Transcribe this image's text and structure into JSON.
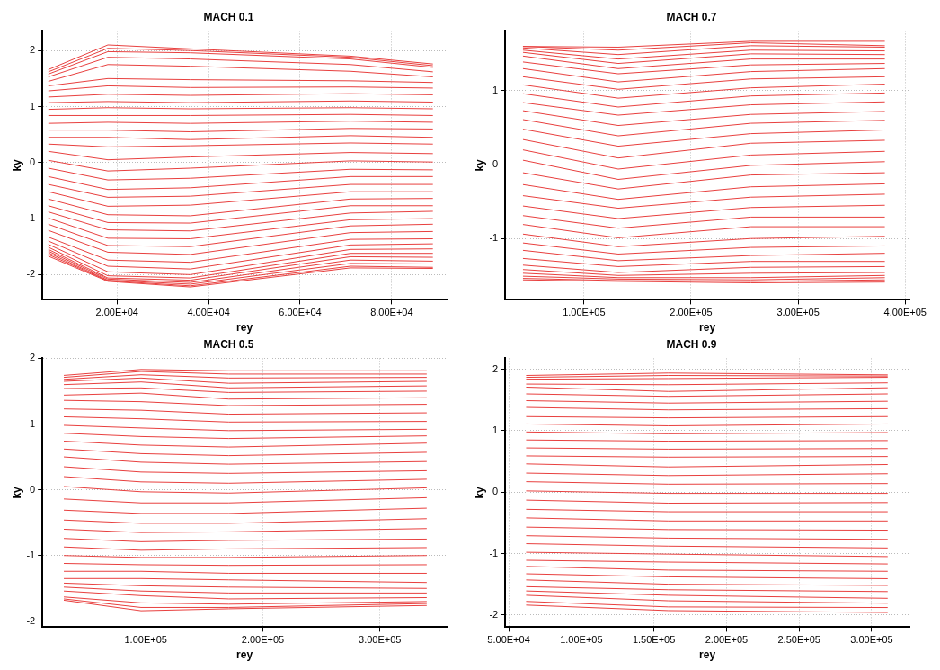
{
  "chart_data": [
    {
      "type": "line",
      "title": "MACH 0.1",
      "xlabel": "rey",
      "ylabel": "ky",
      "color": "#e8403f",
      "grid": true,
      "x": [
        5000,
        18000,
        36000,
        71000,
        89000
      ],
      "xlim": [
        3700,
        92000
      ],
      "ylim": [
        -2.45,
        2.35
      ],
      "xticks": [
        {
          "value": 20000,
          "label": "2.00E+04"
        },
        {
          "value": 40000,
          "label": "4.00E+04"
        },
        {
          "value": 60000,
          "label": "6.00E+04"
        },
        {
          "value": 80000,
          "label": "8.00E+04"
        }
      ],
      "yticks": [
        -2,
        -1,
        0,
        1,
        2
      ],
      "series": [
        {
          "values": [
            1.66,
            2.1,
            2.03,
            1.9,
            1.76
          ]
        },
        {
          "values": [
            1.62,
            2.04,
            2.0,
            1.88,
            1.73
          ]
        },
        {
          "values": [
            1.58,
            1.98,
            1.96,
            1.85,
            1.7
          ]
        },
        {
          "values": [
            1.53,
            1.88,
            1.85,
            1.75,
            1.62
          ]
        },
        {
          "values": [
            1.45,
            1.75,
            1.72,
            1.63,
            1.53
          ]
        },
        {
          "values": [
            1.37,
            1.5,
            1.48,
            1.46,
            1.43
          ]
        },
        {
          "values": [
            1.28,
            1.37,
            1.34,
            1.35,
            1.33
          ]
        },
        {
          "values": [
            1.17,
            1.22,
            1.2,
            1.23,
            1.21
          ]
        },
        {
          "values": [
            1.07,
            1.09,
            1.07,
            1.1,
            1.08
          ]
        },
        {
          "values": [
            0.95,
            0.98,
            0.96,
            0.98,
            0.96
          ]
        },
        {
          "values": [
            0.84,
            0.84,
            0.84,
            0.86,
            0.84
          ]
        },
        {
          "values": [
            0.7,
            0.72,
            0.7,
            0.74,
            0.72
          ]
        },
        {
          "values": [
            0.58,
            0.58,
            0.55,
            0.61,
            0.6
          ]
        },
        {
          "values": [
            0.45,
            0.45,
            0.41,
            0.48,
            0.45
          ]
        },
        {
          "values": [
            0.33,
            0.28,
            0.3,
            0.35,
            0.33
          ]
        },
        {
          "values": [
            0.2,
            0.05,
            0.1,
            0.18,
            0.16
          ]
        },
        {
          "values": [
            0.04,
            -0.15,
            -0.1,
            0.03,
            0.01
          ]
        },
        {
          "values": [
            -0.1,
            -0.31,
            -0.28,
            -0.12,
            -0.13
          ]
        },
        {
          "values": [
            -0.25,
            -0.48,
            -0.45,
            -0.25,
            -0.25
          ]
        },
        {
          "values": [
            -0.39,
            -0.62,
            -0.6,
            -0.39,
            -0.39
          ]
        },
        {
          "values": [
            -0.52,
            -0.78,
            -0.76,
            -0.52,
            -0.52
          ]
        },
        {
          "values": [
            -0.65,
            -0.93,
            -0.95,
            -0.65,
            -0.64
          ]
        },
        {
          "values": [
            -0.77,
            -1.07,
            -1.08,
            -0.77,
            -0.77
          ]
        },
        {
          "values": [
            -0.88,
            -1.2,
            -1.22,
            -0.9,
            -0.87
          ]
        },
        {
          "values": [
            -0.99,
            -1.35,
            -1.36,
            -1.02,
            -1.0
          ]
        },
        {
          "values": [
            -1.1,
            -1.48,
            -1.5,
            -1.13,
            -1.1
          ]
        },
        {
          "values": [
            -1.21,
            -1.6,
            -1.64,
            -1.25,
            -1.23
          ]
        },
        {
          "values": [
            -1.33,
            -1.74,
            -1.78,
            -1.37,
            -1.36
          ]
        },
        {
          "values": [
            -1.4,
            -1.85,
            -1.9,
            -1.47,
            -1.45
          ]
        },
        {
          "values": [
            -1.46,
            -1.95,
            -2.0,
            -1.55,
            -1.54
          ]
        },
        {
          "values": [
            -1.51,
            -2.02,
            -2.06,
            -1.62,
            -1.62
          ]
        },
        {
          "values": [
            -1.55,
            -2.06,
            -2.1,
            -1.68,
            -1.69
          ]
        },
        {
          "values": [
            -1.58,
            -2.08,
            -2.14,
            -1.74,
            -1.76
          ]
        },
        {
          "values": [
            -1.61,
            -2.1,
            -2.17,
            -1.8,
            -1.81
          ]
        },
        {
          "values": [
            -1.64,
            -2.11,
            -2.2,
            -1.85,
            -1.87
          ]
        },
        {
          "values": [
            -1.67,
            -2.12,
            -2.22,
            -1.88,
            -1.89
          ]
        }
      ]
    },
    {
      "type": "line",
      "title": "MACH 0.7",
      "xlabel": "rey",
      "ylabel": "ky",
      "color": "#e8403f",
      "grid": true,
      "x": [
        43000,
        132000,
        256000,
        381000
      ],
      "xlim": [
        26400,
        404000
      ],
      "ylim": [
        -1.83,
        1.81
      ],
      "xticks": [
        {
          "value": 100000,
          "label": "1.00E+05"
        },
        {
          "value": 200000,
          "label": "2.00E+05"
        },
        {
          "value": 300000,
          "label": "3.00E+05"
        },
        {
          "value": 400000,
          "label": "4.00E+05"
        }
      ],
      "yticks": [
        -1,
        0,
        1
      ],
      "series": [
        {
          "values": [
            1.6,
            1.59,
            1.67,
            1.67
          ]
        },
        {
          "values": [
            1.6,
            1.55,
            1.65,
            1.61
          ]
        },
        {
          "values": [
            1.58,
            1.49,
            1.61,
            1.59
          ]
        },
        {
          "values": [
            1.55,
            1.43,
            1.55,
            1.54
          ]
        },
        {
          "values": [
            1.52,
            1.37,
            1.5,
            1.49
          ]
        },
        {
          "values": [
            1.47,
            1.3,
            1.43,
            1.43
          ]
        },
        {
          "values": [
            1.39,
            1.23,
            1.35,
            1.37
          ]
        },
        {
          "values": [
            1.3,
            1.12,
            1.26,
            1.3
          ]
        },
        {
          "values": [
            1.19,
            1.02,
            1.16,
            1.19
          ]
        },
        {
          "values": [
            1.08,
            0.9,
            1.04,
            1.09
          ]
        },
        {
          "values": [
            0.96,
            0.78,
            0.93,
            0.97
          ]
        },
        {
          "values": [
            0.84,
            0.67,
            0.81,
            0.85
          ]
        },
        {
          "values": [
            0.73,
            0.53,
            0.68,
            0.72
          ]
        },
        {
          "values": [
            0.61,
            0.39,
            0.56,
            0.6
          ]
        },
        {
          "values": [
            0.48,
            0.25,
            0.42,
            0.47
          ]
        },
        {
          "values": [
            0.34,
            0.09,
            0.29,
            0.33
          ]
        },
        {
          "values": [
            0.2,
            -0.06,
            0.13,
            0.18
          ]
        },
        {
          "values": [
            0.06,
            -0.2,
            -0.01,
            0.04
          ]
        },
        {
          "values": [
            -0.11,
            -0.33,
            -0.14,
            -0.11
          ]
        },
        {
          "values": [
            -0.27,
            -0.47,
            -0.3,
            -0.26
          ]
        },
        {
          "values": [
            -0.42,
            -0.59,
            -0.44,
            -0.4
          ]
        },
        {
          "values": [
            -0.56,
            -0.73,
            -0.58,
            -0.55
          ]
        },
        {
          "values": [
            -0.69,
            -0.86,
            -0.71,
            -0.71
          ]
        },
        {
          "values": [
            -0.81,
            -0.99,
            -0.84,
            -0.84
          ]
        },
        {
          "values": [
            -0.94,
            -1.11,
            -1.0,
            -0.97
          ]
        },
        {
          "values": [
            -1.06,
            -1.21,
            -1.12,
            -1.1
          ]
        },
        {
          "values": [
            -1.16,
            -1.3,
            -1.23,
            -1.2
          ]
        },
        {
          "values": [
            -1.27,
            -1.38,
            -1.31,
            -1.31
          ]
        },
        {
          "values": [
            -1.36,
            -1.46,
            -1.39,
            -1.38
          ]
        },
        {
          "values": [
            -1.42,
            -1.5,
            -1.47,
            -1.46
          ]
        },
        {
          "values": [
            -1.47,
            -1.53,
            -1.53,
            -1.5
          ]
        },
        {
          "values": [
            -1.51,
            -1.55,
            -1.56,
            -1.53
          ]
        },
        {
          "values": [
            -1.54,
            -1.57,
            -1.58,
            -1.56
          ]
        },
        {
          "values": [
            -1.56,
            -1.58,
            -1.6,
            -1.59
          ]
        }
      ]
    },
    {
      "type": "line",
      "title": "MACH 0.5",
      "xlabel": "rey",
      "ylabel": "ky",
      "color": "#e8403f",
      "grid": true,
      "x": [
        30000,
        96000,
        171000,
        340000
      ],
      "xlim": [
        11700,
        357000
      ],
      "ylim": [
        -2.09,
        2.0
      ],
      "xticks": [
        {
          "value": 100000,
          "label": "1.00E+05"
        },
        {
          "value": 200000,
          "label": "2.00E+05"
        },
        {
          "value": 300000,
          "label": "3.00E+05"
        }
      ],
      "yticks": [
        -2,
        -1,
        0,
        1,
        2
      ],
      "series": [
        {
          "values": [
            1.74,
            1.83,
            1.81,
            1.81
          ]
        },
        {
          "values": [
            1.71,
            1.8,
            1.76,
            1.76
          ]
        },
        {
          "values": [
            1.68,
            1.75,
            1.7,
            1.71
          ]
        },
        {
          "values": [
            1.65,
            1.7,
            1.62,
            1.65
          ]
        },
        {
          "values": [
            1.6,
            1.64,
            1.55,
            1.58
          ]
        },
        {
          "values": [
            1.54,
            1.55,
            1.48,
            1.5
          ]
        },
        {
          "values": [
            1.44,
            1.47,
            1.38,
            1.4
          ]
        },
        {
          "values": [
            1.36,
            1.34,
            1.28,
            1.3
          ]
        },
        {
          "values": [
            1.23,
            1.21,
            1.15,
            1.17
          ]
        },
        {
          "values": [
            1.11,
            1.08,
            1.03,
            1.04
          ]
        },
        {
          "values": [
            0.98,
            0.94,
            0.9,
            0.92
          ]
        },
        {
          "values": [
            0.86,
            0.81,
            0.78,
            0.82
          ]
        },
        {
          "values": [
            0.74,
            0.68,
            0.65,
            0.71
          ]
        },
        {
          "values": [
            0.62,
            0.55,
            0.52,
            0.57
          ]
        },
        {
          "values": [
            0.5,
            0.42,
            0.39,
            0.43
          ]
        },
        {
          "values": [
            0.35,
            0.27,
            0.25,
            0.29
          ]
        },
        {
          "values": [
            0.2,
            0.12,
            0.1,
            0.16
          ]
        },
        {
          "values": [
            0.05,
            -0.03,
            -0.05,
            0.03
          ]
        },
        {
          "values": [
            -0.14,
            -0.2,
            -0.2,
            -0.12
          ]
        },
        {
          "values": [
            -0.31,
            -0.36,
            -0.36,
            -0.28
          ]
        },
        {
          "values": [
            -0.46,
            -0.51,
            -0.51,
            -0.44
          ]
        },
        {
          "values": [
            -0.6,
            -0.65,
            -0.64,
            -0.59
          ]
        },
        {
          "values": [
            -0.74,
            -0.79,
            -0.77,
            -0.75
          ]
        },
        {
          "values": [
            -0.87,
            -0.92,
            -0.9,
            -0.88
          ]
        },
        {
          "values": [
            -1.0,
            -1.03,
            -1.03,
            -1.0
          ]
        },
        {
          "values": [
            -1.12,
            -1.14,
            -1.15,
            -1.14
          ]
        },
        {
          "values": [
            -1.24,
            -1.24,
            -1.27,
            -1.27
          ]
        },
        {
          "values": [
            -1.35,
            -1.35,
            -1.37,
            -1.41
          ]
        },
        {
          "values": [
            -1.42,
            -1.46,
            -1.48,
            -1.5
          ]
        },
        {
          "values": [
            -1.48,
            -1.54,
            -1.57,
            -1.57
          ]
        },
        {
          "values": [
            -1.54,
            -1.61,
            -1.66,
            -1.64
          ]
        },
        {
          "values": [
            -1.63,
            -1.72,
            -1.74,
            -1.7
          ]
        },
        {
          "values": [
            -1.66,
            -1.79,
            -1.79,
            -1.73
          ]
        },
        {
          "values": [
            -1.68,
            -1.84,
            -1.81,
            -1.76
          ]
        }
      ]
    },
    {
      "type": "line",
      "title": "MACH 0.9",
      "xlabel": "rey",
      "ylabel": "ky",
      "color": "#e8403f",
      "grid": true,
      "x": [
        62000,
        160000,
        311000
      ],
      "xlim": [
        47600,
        326000
      ],
      "ylim": [
        -2.2,
        2.18
      ],
      "xticks": [
        {
          "value": 50000,
          "label": "5.00E+04"
        },
        {
          "value": 100000,
          "label": "1.00E+05"
        },
        {
          "value": 150000,
          "label": "1.50E+05"
        },
        {
          "value": 200000,
          "label": "2.00E+05"
        },
        {
          "value": 250000,
          "label": "2.50E+05"
        },
        {
          "value": 300000,
          "label": "3.00E+05"
        }
      ],
      "yticks": [
        -2,
        -1,
        0,
        1,
        2
      ],
      "series": [
        {
          "values": [
            1.9,
            1.94,
            1.91
          ]
        },
        {
          "values": [
            1.87,
            1.9,
            1.89
          ]
        },
        {
          "values": [
            1.84,
            1.85,
            1.87
          ]
        },
        {
          "values": [
            1.76,
            1.75,
            1.78
          ]
        },
        {
          "values": [
            1.71,
            1.64,
            1.7
          ]
        },
        {
          "values": [
            1.6,
            1.56,
            1.6
          ]
        },
        {
          "values": [
            1.49,
            1.45,
            1.48
          ]
        },
        {
          "values": [
            1.38,
            1.34,
            1.36
          ]
        },
        {
          "values": [
            1.23,
            1.21,
            1.23
          ]
        },
        {
          "values": [
            1.11,
            1.08,
            1.11
          ]
        },
        {
          "values": [
            0.98,
            0.95,
            0.97
          ]
        },
        {
          "values": [
            0.85,
            0.83,
            0.84
          ]
        },
        {
          "values": [
            0.72,
            0.7,
            0.71
          ]
        },
        {
          "values": [
            0.59,
            0.57,
            0.58
          ]
        },
        {
          "values": [
            0.46,
            0.41,
            0.45
          ]
        },
        {
          "values": [
            0.31,
            0.27,
            0.3
          ]
        },
        {
          "values": [
            0.17,
            0.13,
            0.14
          ]
        },
        {
          "values": [
            0.02,
            -0.02,
            -0.02
          ]
        },
        {
          "values": [
            -0.13,
            -0.18,
            -0.17
          ]
        },
        {
          "values": [
            -0.28,
            -0.32,
            -0.32
          ]
        },
        {
          "values": [
            -0.42,
            -0.47,
            -0.47
          ]
        },
        {
          "values": [
            -0.57,
            -0.61,
            -0.62
          ]
        },
        {
          "values": [
            -0.71,
            -0.75,
            -0.77
          ]
        },
        {
          "values": [
            -0.84,
            -0.88,
            -0.91
          ]
        },
        {
          "values": [
            -0.98,
            -1.01,
            -1.05
          ]
        },
        {
          "values": [
            -1.11,
            -1.14,
            -1.17
          ]
        },
        {
          "values": [
            -1.21,
            -1.27,
            -1.29
          ]
        },
        {
          "values": [
            -1.33,
            -1.38,
            -1.41
          ]
        },
        {
          "values": [
            -1.43,
            -1.5,
            -1.52
          ]
        },
        {
          "values": [
            -1.54,
            -1.59,
            -1.62
          ]
        },
        {
          "values": [
            -1.61,
            -1.68,
            -1.73
          ]
        },
        {
          "values": [
            -1.68,
            -1.77,
            -1.81
          ]
        },
        {
          "values": [
            -1.78,
            -1.87,
            -1.88
          ]
        },
        {
          "values": [
            -1.84,
            -1.93,
            -1.96
          ]
        }
      ]
    }
  ]
}
